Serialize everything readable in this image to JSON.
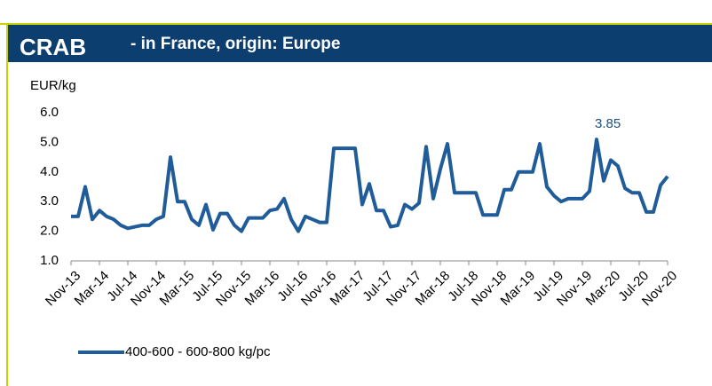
{
  "chart_data": {
    "type": "line",
    "title": "CRAB",
    "subtitle": "- in France, origin: Europe",
    "y_label": "EUR/kg",
    "annotation": "3.85",
    "categories": [
      "Nov-13",
      null,
      null,
      null,
      "Mar-14",
      null,
      null,
      null,
      "Jul-14",
      null,
      null,
      null,
      "Nov-14",
      null,
      null,
      null,
      "Mar-15",
      null,
      null,
      null,
      "Jul-15",
      null,
      null,
      null,
      "Nov-15",
      null,
      null,
      null,
      "Mar-16",
      null,
      null,
      null,
      "Jul-16",
      null,
      null,
      null,
      "Nov-16",
      null,
      null,
      null,
      "Mar-17",
      null,
      null,
      null,
      "Jul-17",
      null,
      null,
      null,
      "Nov-17",
      null,
      null,
      null,
      "Mar-18",
      null,
      null,
      null,
      "Jul-18",
      null,
      null,
      null,
      "Nov-18",
      null,
      null,
      null,
      "Mar-19",
      null,
      null,
      null,
      "Jul-19",
      null,
      null,
      null,
      "Nov-19",
      null,
      null,
      null,
      "Mar-20",
      null,
      null,
      null,
      "Jul-20",
      null,
      null,
      null,
      "Nov-20"
    ],
    "series": [
      {
        "name": "400-600 - 600-800 kg/pc",
        "color": "#1f5c99",
        "values": [
          2.5,
          2.5,
          3.5,
          2.4,
          2.7,
          2.5,
          2.4,
          2.2,
          2.1,
          2.15,
          2.2,
          2.2,
          2.4,
          2.5,
          4.5,
          3.0,
          3.0,
          2.4,
          2.2,
          2.9,
          2.05,
          2.6,
          2.6,
          2.2,
          2.0,
          2.45,
          2.45,
          2.45,
          2.7,
          2.75,
          3.1,
          2.4,
          2.0,
          2.5,
          2.4,
          2.3,
          2.3,
          4.8,
          4.8,
          4.8,
          4.8,
          2.9,
          3.6,
          2.7,
          2.7,
          2.15,
          2.2,
          2.9,
          2.75,
          2.95,
          4.85,
          3.1,
          4.1,
          4.95,
          3.3,
          3.3,
          3.3,
          3.3,
          2.55,
          2.55,
          2.55,
          3.4,
          3.4,
          4.0,
          4.0,
          4.0,
          4.95,
          3.5,
          3.2,
          3.0,
          3.1,
          3.1,
          3.1,
          3.35,
          5.1,
          3.7,
          4.4,
          4.2,
          3.45,
          3.3,
          3.3,
          2.65,
          2.65,
          3.55,
          3.85
        ]
      }
    ],
    "ylim": [
      1.0,
      6.0
    ],
    "yticks": [
      {
        "value": 1,
        "label": "1.0"
      },
      {
        "value": 2,
        "label": "2.0"
      },
      {
        "value": 3,
        "label": "3.0"
      },
      {
        "value": 4,
        "label": "4.0"
      },
      {
        "value": 5,
        "label": "5.0"
      },
      {
        "value": 6,
        "label": "6.0"
      }
    ],
    "grid": false
  }
}
